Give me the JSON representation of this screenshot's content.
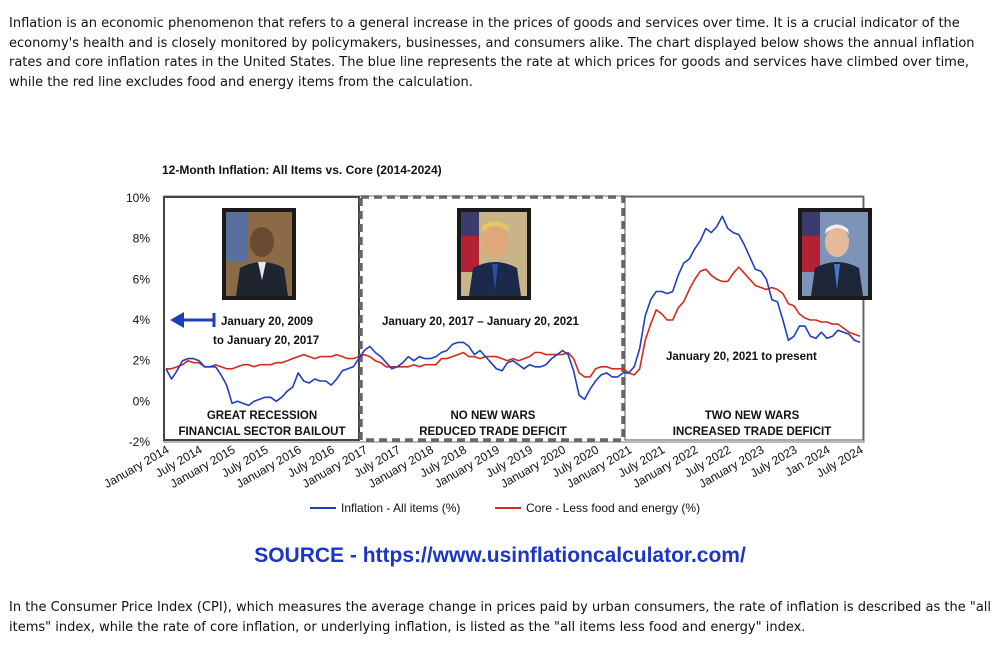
{
  "intro_text": "Inflation is an economic phenomenon that refers to a general increase in the prices of goods and services over time. It is a crucial indicator of the economy's health and is closely monitored by policymakers, businesses, and consumers alike. The chart displayed below shows the annual inflation rates and core inflation rates in the United States. The blue line represents the rate at which prices for goods and services have climbed over time, while the red line excludes food and energy items from the calculation.",
  "source_text": "SOURCE - https://www.usinflationcalculator.com/",
  "outro_text": "In the Consumer Price Index (CPI), which measures the average change in prices paid by urban consumers, the rate of inflation is described as the \"all items\" index, while the rate of core inflation, or underlying inflation, is listed as the \"all items less food and energy\" index.",
  "colors": {
    "all_items": "#1f3fbf",
    "core": "#d42a1c",
    "source": "#1b35c8"
  },
  "annotations": {
    "period1_dates_line1": "January 20, 2009",
    "period1_dates_line2": "to January 20, 2017",
    "period1_label_line1": "GREAT RECESSION",
    "period1_label_line2": "FINANCIAL SECTOR BAILOUT",
    "period2_dates": "January 20, 2017 – January 20, 2021",
    "period2_label_line1": "NO NEW WARS",
    "period2_label_line2": "REDUCED TRADE DEFICIT",
    "period3_dates": "January 20, 2021 to present",
    "period3_label_line1": "TWO NEW WARS",
    "period3_label_line2": "INCREASED TRADE DEFICIT"
  },
  "chart_data": {
    "type": "line",
    "title": "12-Month Inflation: All Items vs. Core (2014-2024)",
    "ylim": [
      -2,
      10
    ],
    "yticks": [
      "10%",
      "8%",
      "6%",
      "4%",
      "2%",
      "0%",
      "-2%"
    ],
    "grid": false,
    "legend_position": "bottom",
    "x_tick_labels": [
      "January 2014",
      "July 2014",
      "January 2015",
      "July 2015",
      "January 2016",
      "July 2016",
      "January 2017",
      "July 2017",
      "January 2018",
      "July 2018",
      "January 2019",
      "July 2019",
      "January 2020",
      "July 2020",
      "January 2021",
      "July 2021",
      "January 2022",
      "July 2022",
      "January 2023",
      "July 2023",
      "Jan 2024",
      "July 2024"
    ],
    "x_start": "2014-01",
    "series": [
      {
        "name": "Inflation - All items (%)",
        "values": [
          1.6,
          1.1,
          1.5,
          2.0,
          2.1,
          2.1,
          2.0,
          1.7,
          1.7,
          1.7,
          1.3,
          0.8,
          -0.1,
          0.0,
          -0.1,
          -0.2,
          0.0,
          0.1,
          0.2,
          0.2,
          0.0,
          0.2,
          0.5,
          0.7,
          1.4,
          1.0,
          0.9,
          1.1,
          1.0,
          1.0,
          0.8,
          1.1,
          1.5,
          1.6,
          1.7,
          2.1,
          2.5,
          2.7,
          2.4,
          2.2,
          1.9,
          1.6,
          1.7,
          1.9,
          2.2,
          2.0,
          2.2,
          2.1,
          2.1,
          2.2,
          2.4,
          2.5,
          2.8,
          2.9,
          2.9,
          2.7,
          2.3,
          2.5,
          2.2,
          1.9,
          1.6,
          1.5,
          1.9,
          2.0,
          1.8,
          1.6,
          1.8,
          1.7,
          1.7,
          1.8,
          2.1,
          2.3,
          2.5,
          2.3,
          1.5,
          0.3,
          0.1,
          0.6,
          1.0,
          1.3,
          1.4,
          1.2,
          1.2,
          1.4,
          1.4,
          1.7,
          2.6,
          4.2,
          5.0,
          5.4,
          5.4,
          5.3,
          5.4,
          6.2,
          6.8,
          7.0,
          7.5,
          7.9,
          8.5,
          8.3,
          8.6,
          9.1,
          8.5,
          8.3,
          8.2,
          7.7,
          7.1,
          6.5,
          6.4,
          6.0,
          5.0,
          4.9,
          4.0,
          3.0,
          3.2,
          3.7,
          3.7,
          3.2,
          3.1,
          3.4,
          3.1,
          3.2,
          3.5,
          3.4,
          3.3,
          3.0,
          2.9
        ]
      },
      {
        "name": "Core - Less food and energy (%)",
        "values": [
          1.6,
          1.6,
          1.7,
          1.8,
          2.0,
          1.9,
          1.9,
          1.7,
          1.7,
          1.8,
          1.7,
          1.6,
          1.6,
          1.7,
          1.8,
          1.8,
          1.7,
          1.8,
          1.8,
          1.8,
          1.9,
          1.9,
          2.0,
          2.1,
          2.2,
          2.3,
          2.2,
          2.1,
          2.2,
          2.2,
          2.2,
          2.3,
          2.2,
          2.1,
          2.1,
          2.2,
          2.3,
          2.2,
          2.0,
          1.9,
          1.7,
          1.7,
          1.7,
          1.7,
          1.7,
          1.8,
          1.7,
          1.8,
          1.8,
          1.8,
          2.1,
          2.1,
          2.2,
          2.3,
          2.4,
          2.2,
          2.2,
          2.1,
          2.2,
          2.2,
          2.2,
          2.1,
          2.0,
          2.1,
          2.0,
          2.1,
          2.2,
          2.4,
          2.4,
          2.3,
          2.3,
          2.3,
          2.3,
          2.4,
          2.1,
          1.4,
          1.2,
          1.2,
          1.6,
          1.7,
          1.7,
          1.6,
          1.6,
          1.6,
          1.4,
          1.3,
          1.6,
          3.0,
          3.8,
          4.5,
          4.3,
          4.0,
          4.0,
          4.6,
          4.9,
          5.5,
          6.0,
          6.4,
          6.5,
          6.2,
          6.0,
          5.9,
          5.9,
          6.3,
          6.6,
          6.3,
          6.0,
          5.7,
          5.6,
          5.5,
          5.6,
          5.5,
          5.3,
          4.8,
          4.7,
          4.3,
          4.1,
          4.0,
          4.0,
          3.9,
          3.9,
          3.8,
          3.8,
          3.6,
          3.4,
          3.3,
          3.2
        ]
      }
    ]
  }
}
